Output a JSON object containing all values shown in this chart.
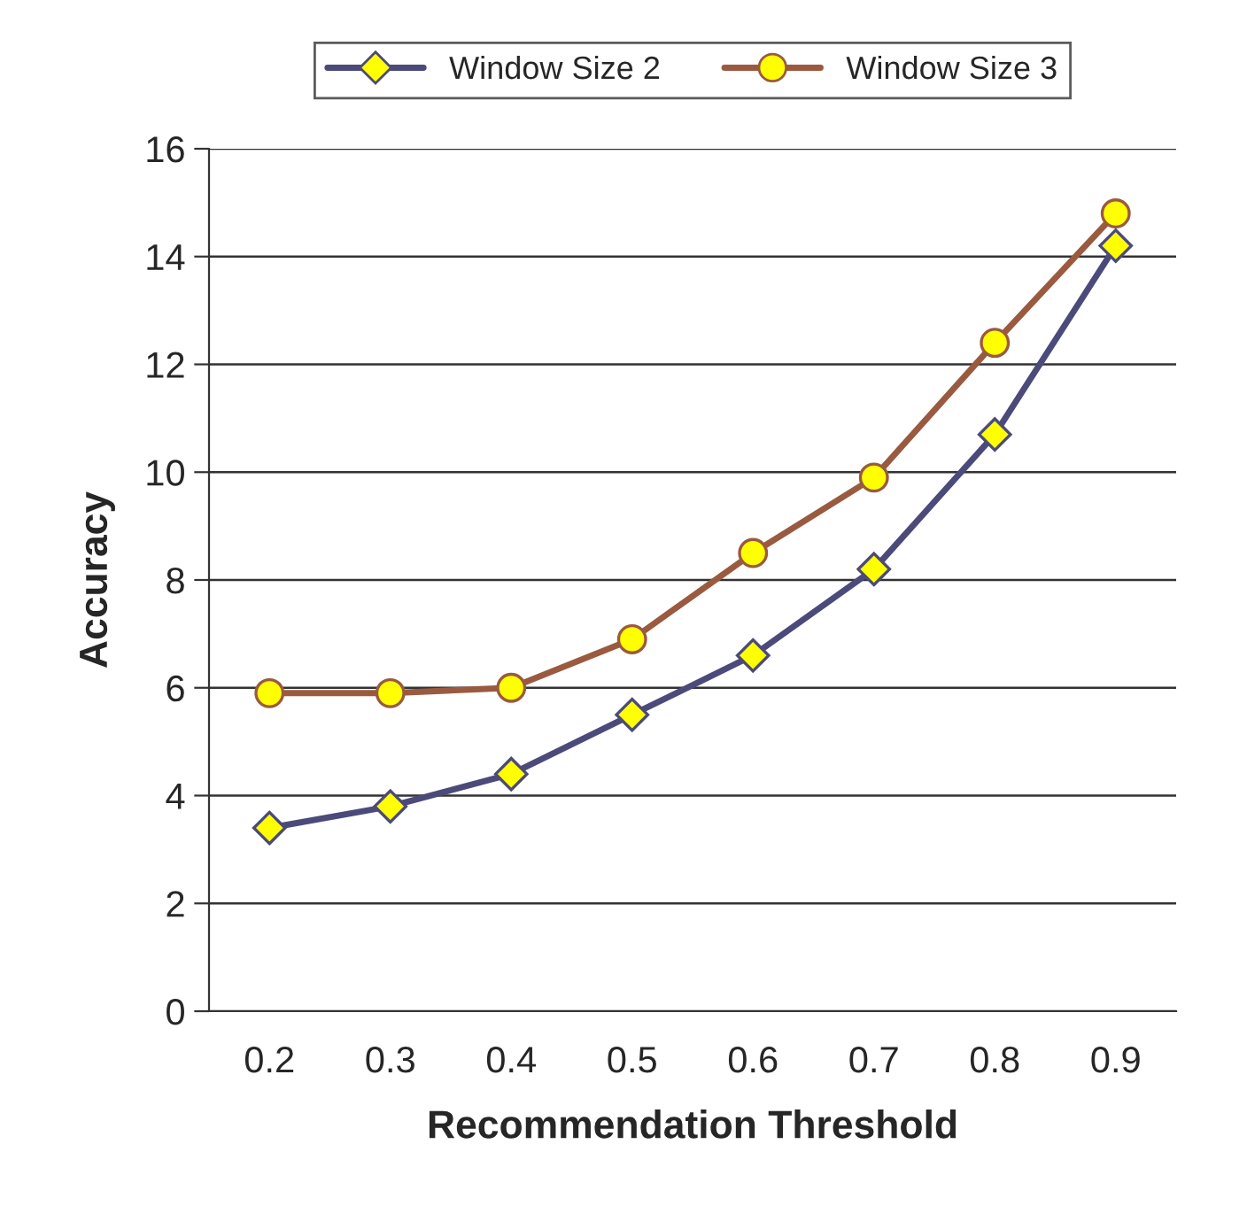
{
  "chart_data": {
    "type": "line",
    "xlabel": "Recommendation Threshold",
    "ylabel": "Accuracy",
    "categories": [
      "0.2",
      "0.3",
      "0.4",
      "0.5",
      "0.6",
      "0.7",
      "0.8",
      "0.9"
    ],
    "series": [
      {
        "name": "Window Size 2",
        "color": "#4b4a7a",
        "marker": "diamond",
        "values": [
          3.4,
          3.8,
          4.4,
          5.5,
          6.6,
          8.2,
          10.7,
          14.2
        ]
      },
      {
        "name": "Window Size 3",
        "color": "#9a5a3f",
        "marker": "circle",
        "values": [
          5.9,
          5.9,
          6.0,
          6.9,
          8.5,
          9.9,
          12.4,
          14.8
        ]
      }
    ],
    "ylim": [
      0,
      16
    ],
    "yticks": [
      0,
      2,
      4,
      6,
      8,
      10,
      12,
      14,
      16
    ],
    "grid": "y",
    "legend": "top",
    "line_style": "solid"
  }
}
